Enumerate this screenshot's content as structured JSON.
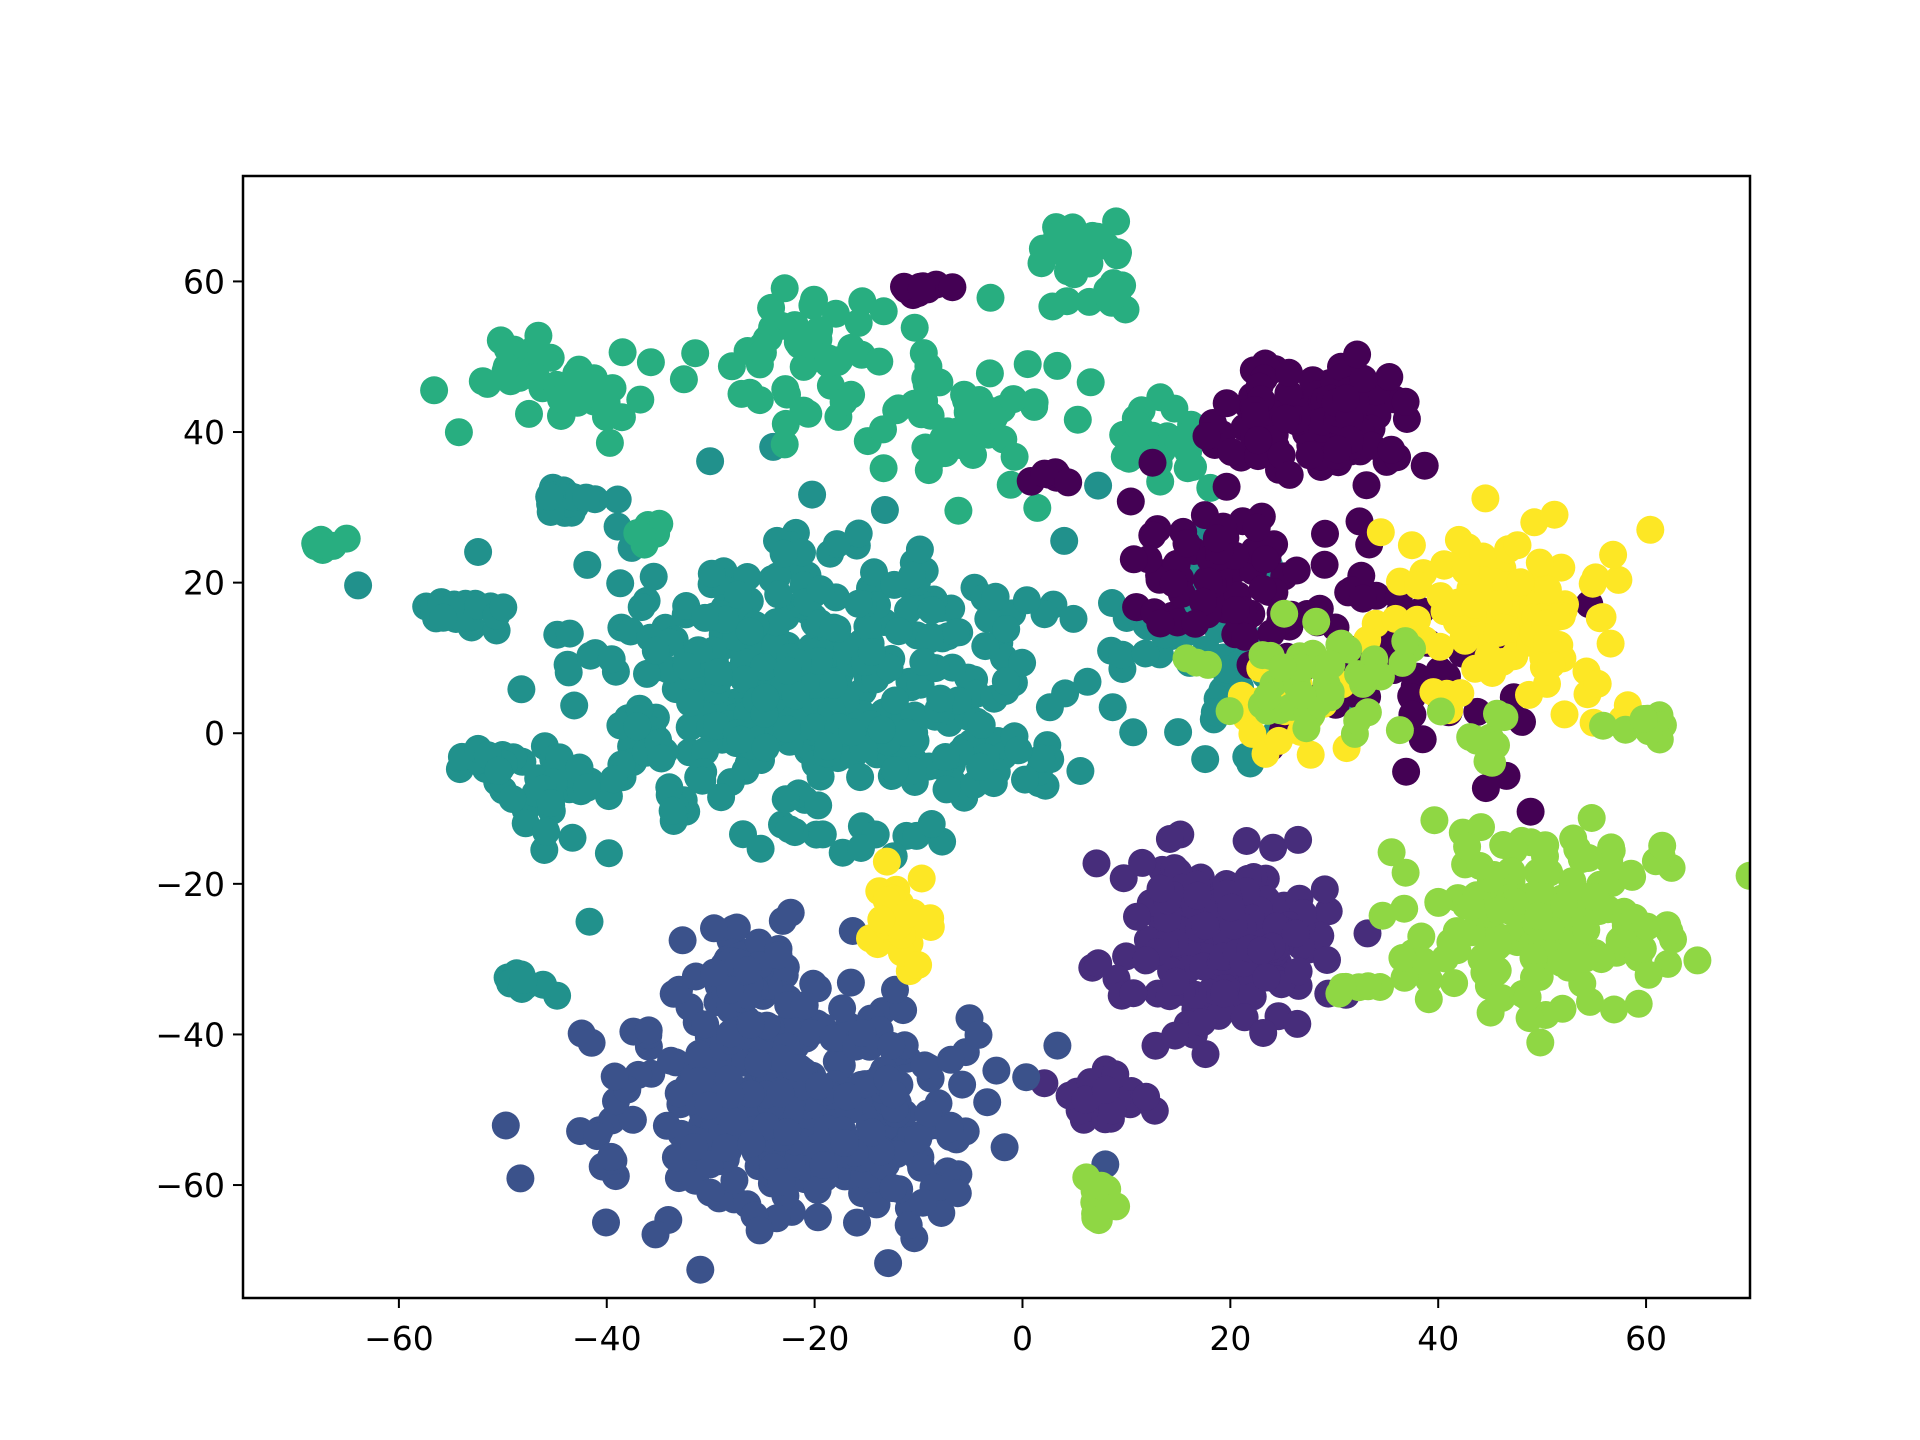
{
  "chart_data": {
    "type": "scatter",
    "title": "",
    "xlabel": "",
    "ylabel": "",
    "xlim": [
      -75,
      70
    ],
    "ylim": [
      -75,
      74
    ],
    "grid": false,
    "legend": "none",
    "colormap": "viridis",
    "x_ticks": [
      -60,
      -40,
      -20,
      0,
      20,
      40,
      60
    ],
    "x_tick_labels": [
      "−60",
      "−40",
      "−20",
      "0",
      "20",
      "40",
      "60"
    ],
    "y_ticks": [
      -60,
      -40,
      -20,
      0,
      20,
      40,
      60
    ],
    "y_tick_labels": [
      "−60",
      "−40",
      "−20",
      "0",
      "20",
      "40",
      "60"
    ],
    "palette": [
      "#440154",
      "#472d7b",
      "#3b528b",
      "#2c728e",
      "#21918c",
      "#28ae80",
      "#5ec962",
      "#addc30",
      "#8fd744",
      "#fde725"
    ],
    "clusters": [
      {
        "class": 4,
        "cx": -20,
        "cy": 5,
        "sx": 11,
        "sy": 10,
        "n": 420
      },
      {
        "class": 4,
        "cx": -44,
        "cy": -8,
        "sx": 3,
        "sy": 3,
        "n": 30
      },
      {
        "class": 4,
        "cx": -54,
        "cy": 16,
        "sx": 2,
        "sy": 1,
        "n": 25
      },
      {
        "class": 4,
        "cx": -44,
        "cy": 31,
        "sx": 1.5,
        "sy": 1,
        "n": 18
      },
      {
        "class": 4,
        "cx": -52,
        "cy": -4,
        "sx": 2,
        "sy": 1,
        "n": 15
      },
      {
        "class": 4,
        "cx": -48,
        "cy": -33,
        "sx": 1.2,
        "sy": 1,
        "n": 10
      },
      {
        "class": 4,
        "cx": 18,
        "cy": 12,
        "sx": 6,
        "sy": 8,
        "n": 70
      },
      {
        "class": 5,
        "cx": -6,
        "cy": 42,
        "sx": 4,
        "sy": 5,
        "n": 60
      },
      {
        "class": 5,
        "cx": -22,
        "cy": 50,
        "sx": 4,
        "sy": 4,
        "n": 45
      },
      {
        "class": 5,
        "cx": -45,
        "cy": 46,
        "sx": 4,
        "sy": 3,
        "n": 45
      },
      {
        "class": 5,
        "cx": 6,
        "cy": 64,
        "sx": 2,
        "sy": 2,
        "n": 25
      },
      {
        "class": 5,
        "cx": 13,
        "cy": 38,
        "sx": 3,
        "sy": 3,
        "n": 25
      },
      {
        "class": 5,
        "cx": -36,
        "cy": 27,
        "sx": 1,
        "sy": 1,
        "n": 10
      },
      {
        "class": 5,
        "cx": -67,
        "cy": 25,
        "sx": 0.8,
        "sy": 0.5,
        "n": 8
      },
      {
        "class": 5,
        "cx": 8,
        "cy": 58,
        "sx": 1.5,
        "sy": 1,
        "n": 10
      },
      {
        "class": 0,
        "cx": 29,
        "cy": 42,
        "sx": 4,
        "sy": 4,
        "n": 110
      },
      {
        "class": 0,
        "cx": 21,
        "cy": 22,
        "sx": 6,
        "sy": 6,
        "n": 80
      },
      {
        "class": 0,
        "cx": 36,
        "cy": 10,
        "sx": 6,
        "sy": 8,
        "n": 55
      },
      {
        "class": 0,
        "cx": -9,
        "cy": 59,
        "sx": 1.2,
        "sy": 1,
        "n": 10
      },
      {
        "class": 0,
        "cx": 2,
        "cy": 34,
        "sx": 1,
        "sy": 0.6,
        "n": 8
      },
      {
        "class": 1,
        "cx": 19,
        "cy": -27,
        "sx": 5,
        "sy": 6,
        "n": 190
      },
      {
        "class": 1,
        "cx": 8,
        "cy": -48,
        "sx": 2.5,
        "sy": 2,
        "n": 20
      },
      {
        "class": 2,
        "cx": -22,
        "cy": -50,
        "sx": 9,
        "sy": 8,
        "n": 360
      },
      {
        "class": 2,
        "cx": -27,
        "cy": -32,
        "sx": 3,
        "sy": 4,
        "n": 60
      },
      {
        "class": 9,
        "cx": 48,
        "cy": 16,
        "sx": 5,
        "sy": 6,
        "n": 110
      },
      {
        "class": 9,
        "cx": -12,
        "cy": -24,
        "sx": 1.5,
        "sy": 3,
        "n": 25
      },
      {
        "class": 9,
        "cx": 24,
        "cy": 3,
        "sx": 3,
        "sy": 3,
        "n": 20
      },
      {
        "class": 8,
        "cx": 50,
        "cy": -25,
        "sx": 6,
        "sy": 6,
        "n": 180
      },
      {
        "class": 8,
        "cx": 28,
        "cy": 8,
        "sx": 5,
        "sy": 4,
        "n": 45
      },
      {
        "class": 8,
        "cx": 60,
        "cy": 1,
        "sx": 2,
        "sy": 1,
        "n": 10
      },
      {
        "class": 8,
        "cx": 7,
        "cy": -62,
        "sx": 1,
        "sy": 2,
        "n": 10
      },
      {
        "class": 8,
        "cx": 33,
        "cy": -34,
        "sx": 1.5,
        "sy": 0.5,
        "n": 6
      },
      {
        "class": 8,
        "cx": 44,
        "cy": 0,
        "sx": 2,
        "sy": 2,
        "n": 10
      }
    ]
  }
}
